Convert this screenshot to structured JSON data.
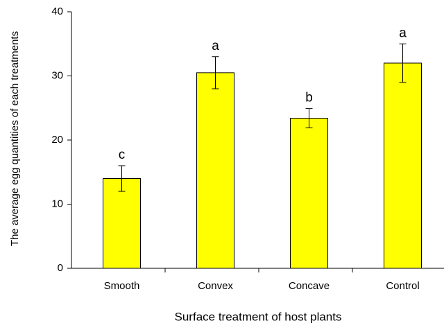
{
  "chart_data": {
    "type": "bar",
    "x_label": "Surface treatment of host plants",
    "y_label": "The average egg quantities of each  treatments",
    "categories": [
      "Smooth",
      "Convex",
      "Concave",
      "Control"
    ],
    "values": [
      14,
      30.5,
      23.4,
      32
    ],
    "errors": [
      2,
      2.5,
      1.5,
      3
    ],
    "significance_labels": [
      "c",
      "a",
      "b",
      "a"
    ],
    "color": "#ffff00",
    "ylim": [
      0,
      40
    ],
    "yticks": [
      0,
      10,
      20,
      30,
      40
    ],
    "grid": false
  }
}
